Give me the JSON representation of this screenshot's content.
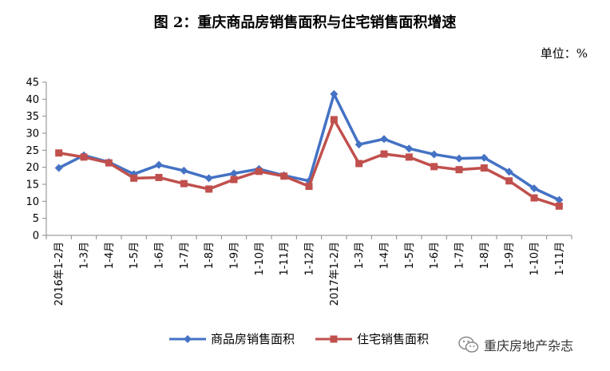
{
  "title": "图 2：重庆商品房销售面积与住宅销售面积增速",
  "unit": "单位：%",
  "watermark": "重庆房地产杂志",
  "watermark_icon": "wechat-icon",
  "chart_data": {
    "type": "line",
    "categories": [
      "2016年1-2月",
      "1-3月",
      "1-4月",
      "1-5月",
      "1-6月",
      "1-7月",
      "1-8月",
      "1-9月",
      "1-10月",
      "1-11月",
      "1-12月",
      "2017年1-2月",
      "1-3月",
      "1-4月",
      "1-5月",
      "1-6月",
      "1-7月",
      "1-8月",
      "1-9月",
      "1-10月",
      "1-11月"
    ],
    "ylim": [
      0,
      45
    ],
    "yticks": [
      0,
      5,
      10,
      15,
      20,
      25,
      30,
      35,
      40,
      45
    ],
    "series": [
      {
        "name": "商品房销售面积",
        "color": "#4472C4",
        "marker": "diamond",
        "values": [
          19.8,
          23.5,
          21.5,
          18.0,
          20.7,
          19.0,
          16.8,
          18.2,
          19.5,
          17.6,
          16.0,
          41.5,
          26.7,
          28.3,
          25.5,
          23.8,
          22.6,
          22.8,
          18.7,
          13.8,
          10.4
        ]
      },
      {
        "name": "住宅销售面积",
        "color": "#C0504D",
        "marker": "square",
        "values": [
          24.2,
          23.0,
          21.3,
          16.8,
          17.0,
          15.2,
          13.6,
          16.4,
          18.8,
          17.4,
          14.4,
          34.0,
          21.1,
          23.9,
          23.0,
          20.2,
          19.3,
          19.8,
          16.0,
          11.0,
          8.6
        ]
      }
    ],
    "grid": false,
    "legend_position": "bottom"
  }
}
